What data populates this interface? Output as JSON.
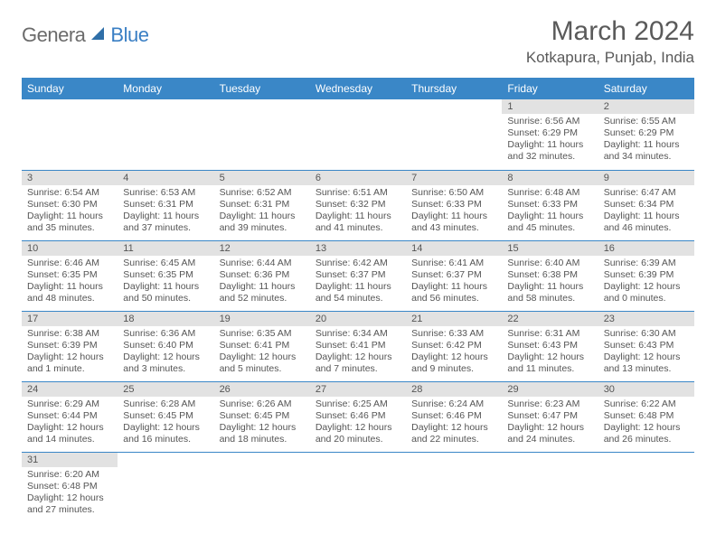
{
  "logo": {
    "general": "Genera",
    "blue": "Blue"
  },
  "title": "March 2024",
  "location": "Kotkapura, Punjab, India",
  "colors": {
    "header_bg": "#3a87c7",
    "header_fg": "#ffffff",
    "daynum_bg": "#e2e2e2",
    "text": "#555555",
    "logo_gray": "#6b6b6b",
    "logo_blue": "#3a7fc4",
    "row_border": "#3a87c7"
  },
  "weekdays": [
    "Sunday",
    "Monday",
    "Tuesday",
    "Wednesday",
    "Thursday",
    "Friday",
    "Saturday"
  ],
  "weeks": [
    [
      null,
      null,
      null,
      null,
      null,
      {
        "n": "1",
        "sr": "Sunrise: 6:56 AM",
        "ss": "Sunset: 6:29 PM",
        "dl": "Daylight: 11 hours and 32 minutes."
      },
      {
        "n": "2",
        "sr": "Sunrise: 6:55 AM",
        "ss": "Sunset: 6:29 PM",
        "dl": "Daylight: 11 hours and 34 minutes."
      }
    ],
    [
      {
        "n": "3",
        "sr": "Sunrise: 6:54 AM",
        "ss": "Sunset: 6:30 PM",
        "dl": "Daylight: 11 hours and 35 minutes."
      },
      {
        "n": "4",
        "sr": "Sunrise: 6:53 AM",
        "ss": "Sunset: 6:31 PM",
        "dl": "Daylight: 11 hours and 37 minutes."
      },
      {
        "n": "5",
        "sr": "Sunrise: 6:52 AM",
        "ss": "Sunset: 6:31 PM",
        "dl": "Daylight: 11 hours and 39 minutes."
      },
      {
        "n": "6",
        "sr": "Sunrise: 6:51 AM",
        "ss": "Sunset: 6:32 PM",
        "dl": "Daylight: 11 hours and 41 minutes."
      },
      {
        "n": "7",
        "sr": "Sunrise: 6:50 AM",
        "ss": "Sunset: 6:33 PM",
        "dl": "Daylight: 11 hours and 43 minutes."
      },
      {
        "n": "8",
        "sr": "Sunrise: 6:48 AM",
        "ss": "Sunset: 6:33 PM",
        "dl": "Daylight: 11 hours and 45 minutes."
      },
      {
        "n": "9",
        "sr": "Sunrise: 6:47 AM",
        "ss": "Sunset: 6:34 PM",
        "dl": "Daylight: 11 hours and 46 minutes."
      }
    ],
    [
      {
        "n": "10",
        "sr": "Sunrise: 6:46 AM",
        "ss": "Sunset: 6:35 PM",
        "dl": "Daylight: 11 hours and 48 minutes."
      },
      {
        "n": "11",
        "sr": "Sunrise: 6:45 AM",
        "ss": "Sunset: 6:35 PM",
        "dl": "Daylight: 11 hours and 50 minutes."
      },
      {
        "n": "12",
        "sr": "Sunrise: 6:44 AM",
        "ss": "Sunset: 6:36 PM",
        "dl": "Daylight: 11 hours and 52 minutes."
      },
      {
        "n": "13",
        "sr": "Sunrise: 6:42 AM",
        "ss": "Sunset: 6:37 PM",
        "dl": "Daylight: 11 hours and 54 minutes."
      },
      {
        "n": "14",
        "sr": "Sunrise: 6:41 AM",
        "ss": "Sunset: 6:37 PM",
        "dl": "Daylight: 11 hours and 56 minutes."
      },
      {
        "n": "15",
        "sr": "Sunrise: 6:40 AM",
        "ss": "Sunset: 6:38 PM",
        "dl": "Daylight: 11 hours and 58 minutes."
      },
      {
        "n": "16",
        "sr": "Sunrise: 6:39 AM",
        "ss": "Sunset: 6:39 PM",
        "dl": "Daylight: 12 hours and 0 minutes."
      }
    ],
    [
      {
        "n": "17",
        "sr": "Sunrise: 6:38 AM",
        "ss": "Sunset: 6:39 PM",
        "dl": "Daylight: 12 hours and 1 minute."
      },
      {
        "n": "18",
        "sr": "Sunrise: 6:36 AM",
        "ss": "Sunset: 6:40 PM",
        "dl": "Daylight: 12 hours and 3 minutes."
      },
      {
        "n": "19",
        "sr": "Sunrise: 6:35 AM",
        "ss": "Sunset: 6:41 PM",
        "dl": "Daylight: 12 hours and 5 minutes."
      },
      {
        "n": "20",
        "sr": "Sunrise: 6:34 AM",
        "ss": "Sunset: 6:41 PM",
        "dl": "Daylight: 12 hours and 7 minutes."
      },
      {
        "n": "21",
        "sr": "Sunrise: 6:33 AM",
        "ss": "Sunset: 6:42 PM",
        "dl": "Daylight: 12 hours and 9 minutes."
      },
      {
        "n": "22",
        "sr": "Sunrise: 6:31 AM",
        "ss": "Sunset: 6:43 PM",
        "dl": "Daylight: 12 hours and 11 minutes."
      },
      {
        "n": "23",
        "sr": "Sunrise: 6:30 AM",
        "ss": "Sunset: 6:43 PM",
        "dl": "Daylight: 12 hours and 13 minutes."
      }
    ],
    [
      {
        "n": "24",
        "sr": "Sunrise: 6:29 AM",
        "ss": "Sunset: 6:44 PM",
        "dl": "Daylight: 12 hours and 14 minutes."
      },
      {
        "n": "25",
        "sr": "Sunrise: 6:28 AM",
        "ss": "Sunset: 6:45 PM",
        "dl": "Daylight: 12 hours and 16 minutes."
      },
      {
        "n": "26",
        "sr": "Sunrise: 6:26 AM",
        "ss": "Sunset: 6:45 PM",
        "dl": "Daylight: 12 hours and 18 minutes."
      },
      {
        "n": "27",
        "sr": "Sunrise: 6:25 AM",
        "ss": "Sunset: 6:46 PM",
        "dl": "Daylight: 12 hours and 20 minutes."
      },
      {
        "n": "28",
        "sr": "Sunrise: 6:24 AM",
        "ss": "Sunset: 6:46 PM",
        "dl": "Daylight: 12 hours and 22 minutes."
      },
      {
        "n": "29",
        "sr": "Sunrise: 6:23 AM",
        "ss": "Sunset: 6:47 PM",
        "dl": "Daylight: 12 hours and 24 minutes."
      },
      {
        "n": "30",
        "sr": "Sunrise: 6:22 AM",
        "ss": "Sunset: 6:48 PM",
        "dl": "Daylight: 12 hours and 26 minutes."
      }
    ],
    [
      {
        "n": "31",
        "sr": "Sunrise: 6:20 AM",
        "ss": "Sunset: 6:48 PM",
        "dl": "Daylight: 12 hours and 27 minutes."
      },
      null,
      null,
      null,
      null,
      null,
      null
    ]
  ]
}
